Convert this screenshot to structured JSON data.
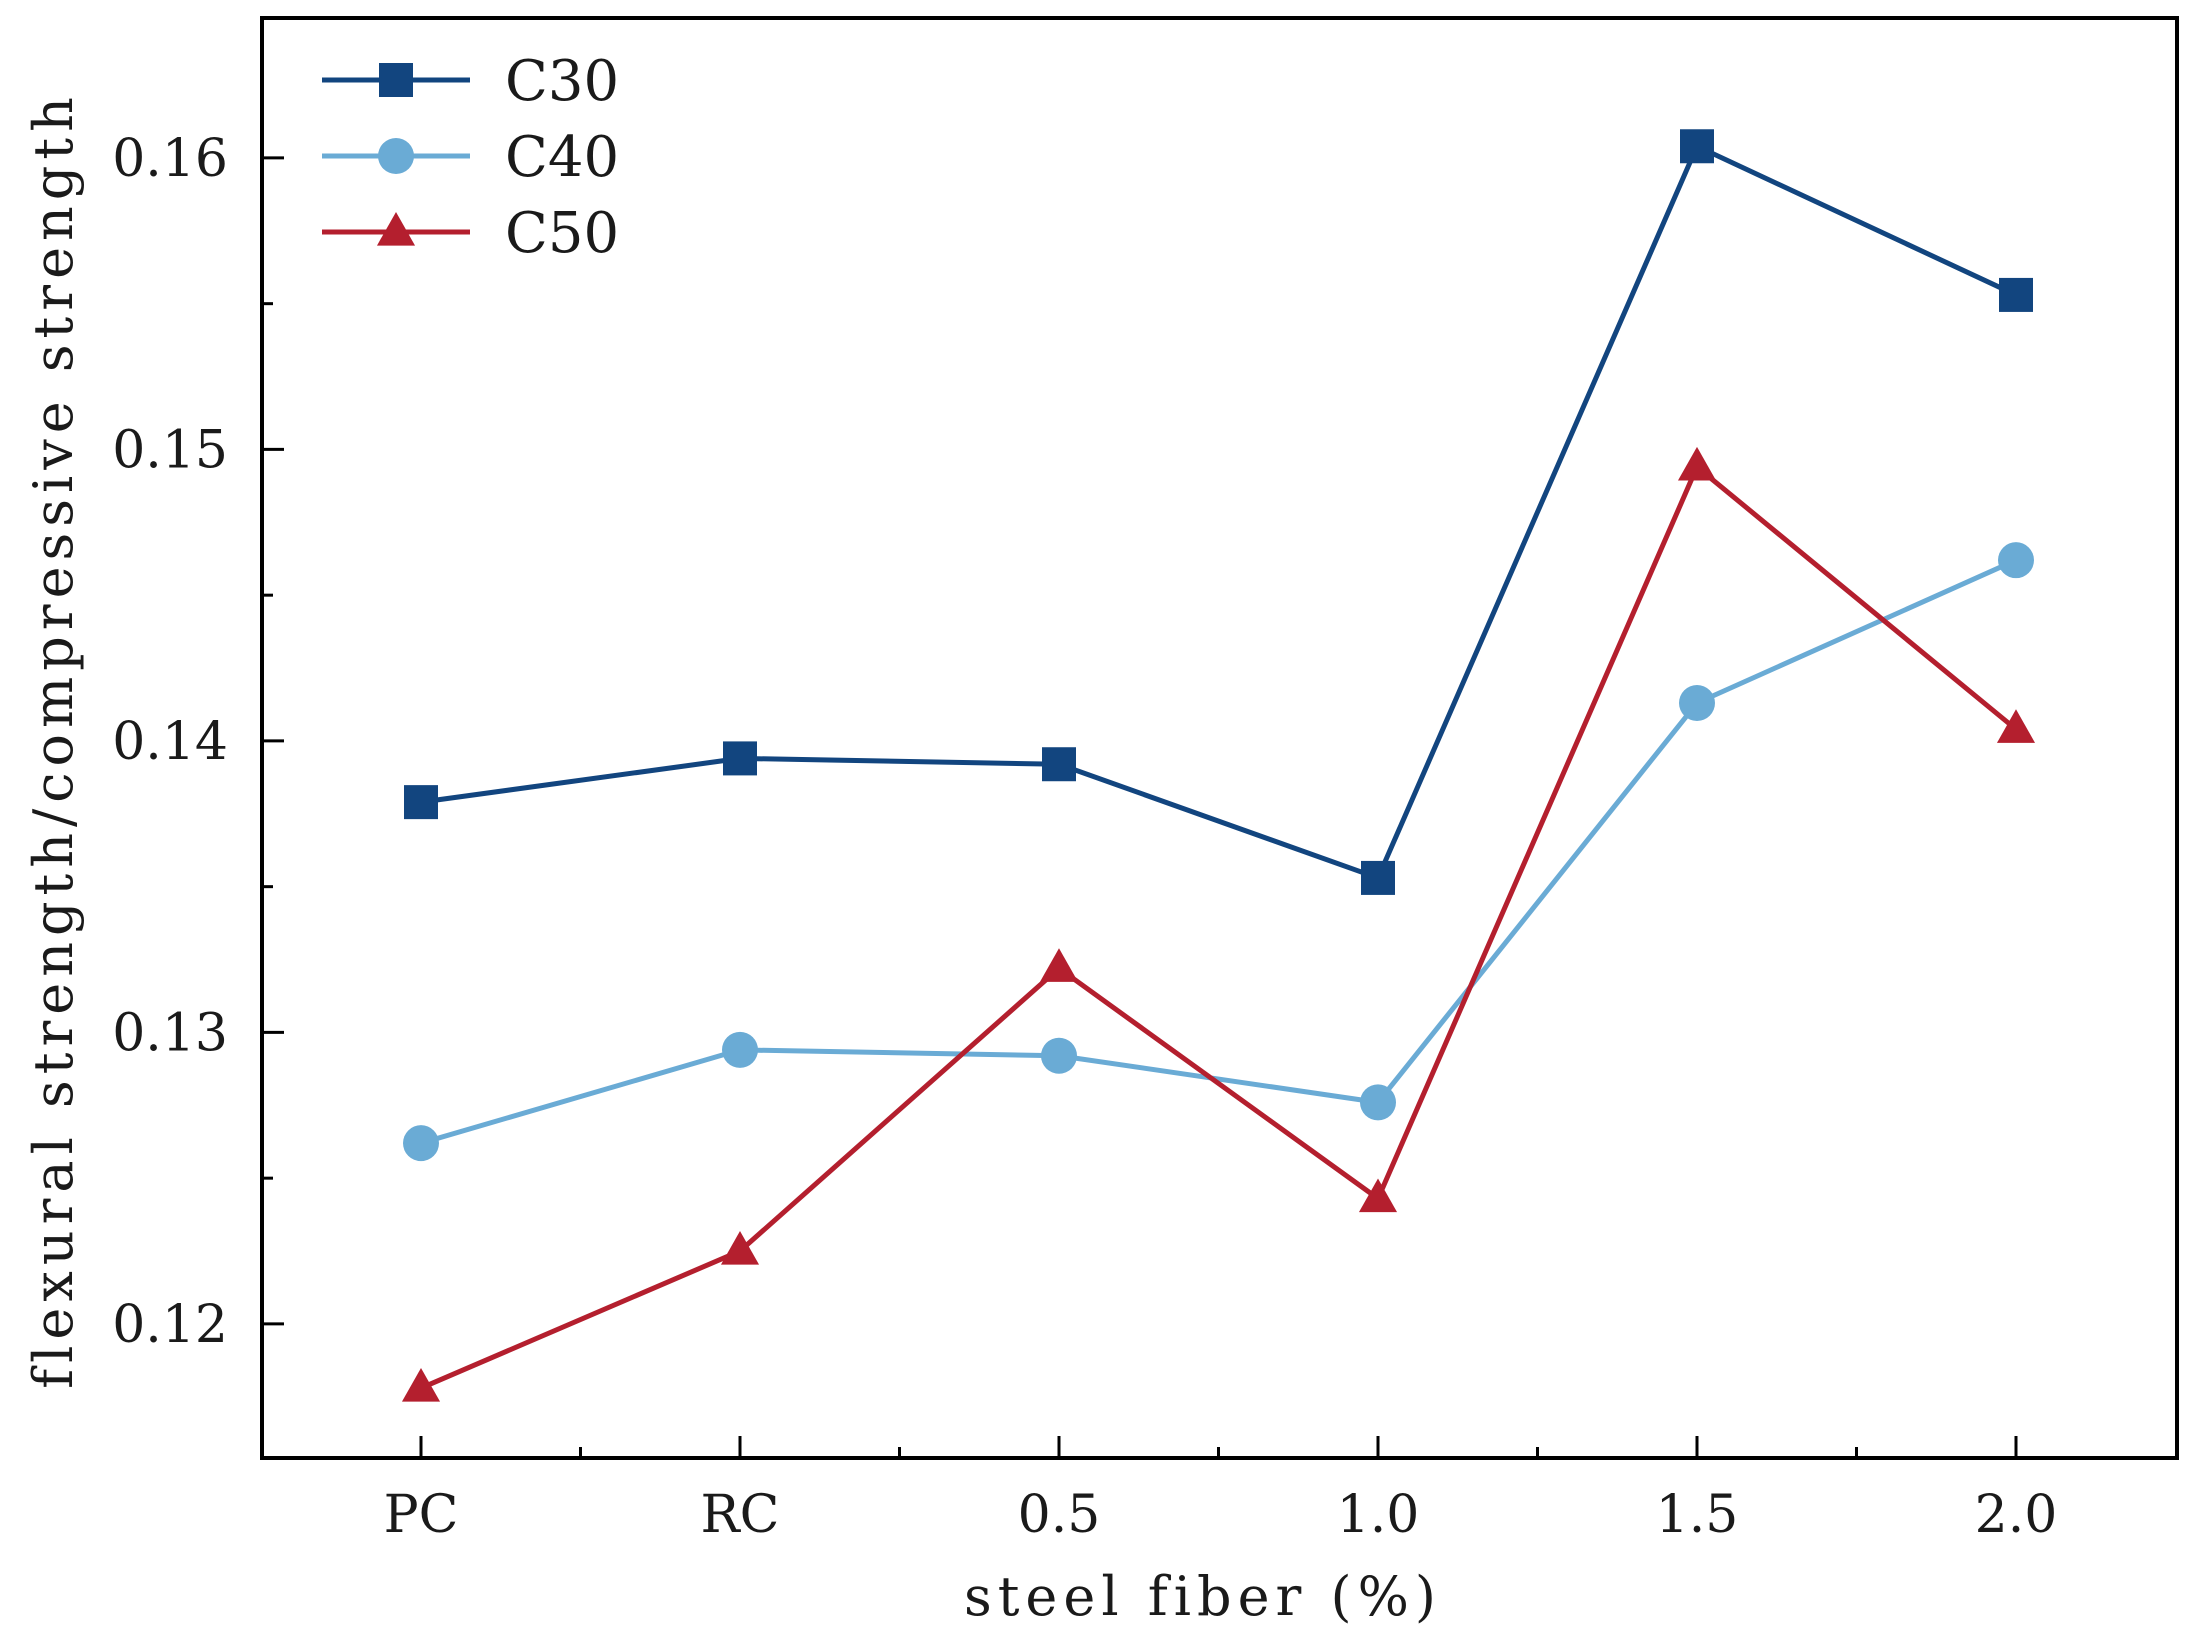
{
  "chart_data": {
    "type": "line",
    "title": "",
    "xlabel": "steel fiber (%)",
    "ylabel": "flexural strength/compressive strength",
    "categories": [
      "PC",
      "RC",
      "0.5",
      "1.0",
      "1.5",
      "2.0"
    ],
    "ylim": [
      0.1154,
      0.1648
    ],
    "yticks": [
      0.12,
      0.13,
      0.14,
      0.15,
      0.16
    ],
    "ytick_labels": [
      "0.12",
      "0.13",
      "0.14",
      "0.15",
      "0.16"
    ],
    "grid": false,
    "legend_position": "top-left",
    "series": [
      {
        "name": "C30",
        "marker": "square",
        "color": "#12457f",
        "values": [
          0.1379,
          0.1394,
          0.1392,
          0.1353,
          0.1604,
          0.1553
        ]
      },
      {
        "name": "C40",
        "marker": "circle",
        "color": "#6aabd5",
        "values": [
          0.1262,
          0.1294,
          0.1292,
          0.1276,
          0.1413,
          0.1462
        ]
      },
      {
        "name": "C50",
        "marker": "triangle",
        "color": "#b41f2e",
        "values": [
          0.1178,
          0.1225,
          0.1322,
          0.1243,
          0.1494,
          0.1404
        ]
      }
    ]
  }
}
